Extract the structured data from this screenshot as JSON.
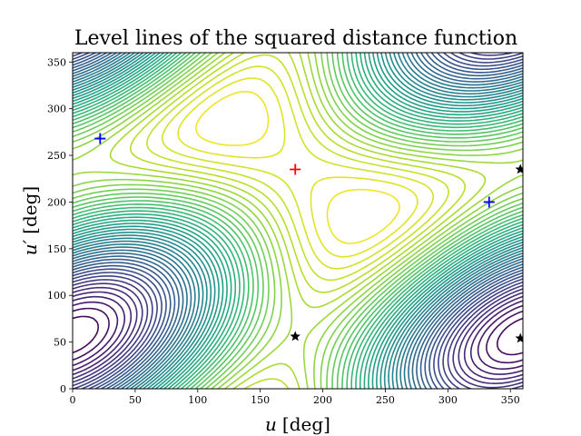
{
  "chart_data": {
    "type": "contour",
    "title": "Level lines of the squared distance function",
    "xlabel": {
      "symbol": "u",
      "unit": "[deg]"
    },
    "ylabel": {
      "symbol": "u′",
      "unit": "[deg]"
    },
    "xlim": [
      0,
      360
    ],
    "ylim": [
      0,
      360
    ],
    "xticks": [
      0,
      50,
      100,
      150,
      200,
      250,
      300,
      350
    ],
    "yticks": [
      0,
      50,
      100,
      150,
      200,
      250,
      300,
      350
    ],
    "colormap": "viridis",
    "grid": false,
    "markers": [
      {
        "kind": "maximum",
        "symbol": "plus",
        "color": "#ff0000",
        "points": [
          [
            178,
            235
          ]
        ]
      },
      {
        "kind": "minimum",
        "symbol": "plus",
        "color": "#0000ff",
        "points": [
          [
            22,
            268
          ],
          [
            333,
            200
          ]
        ]
      },
      {
        "kind": "saddle",
        "symbol": "star",
        "color": "#000000",
        "points": [
          [
            178,
            56
          ],
          [
            358,
            235
          ],
          [
            358,
            54
          ]
        ]
      }
    ]
  }
}
